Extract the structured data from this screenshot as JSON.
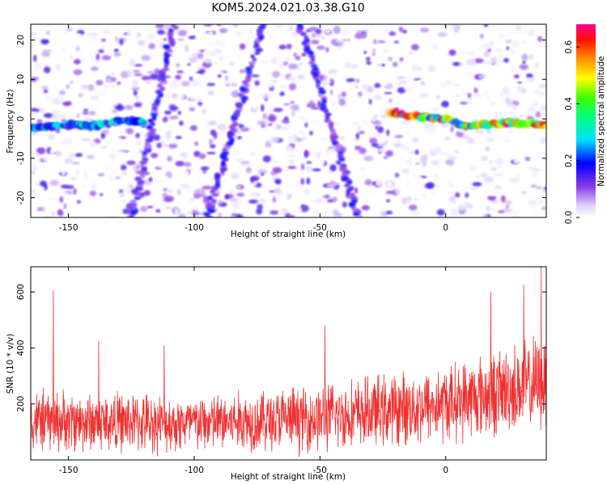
{
  "chart_data": [
    {
      "type": "heatmap",
      "title": "KOM5.2024.021.03.38.G10",
      "xlabel": "Height of straight line (km)",
      "ylabel": "Frequency (Hz)",
      "xlim": [
        -165,
        40
      ],
      "ylim": [
        -25,
        24
      ],
      "xticks": [
        -150,
        -100,
        -50,
        0
      ],
      "yticks": [
        -20,
        -10,
        0,
        10,
        20
      ],
      "colorbar": {
        "label": "Normalized spectral amplitude",
        "range": [
          0.0,
          0.68
        ],
        "ticks": [
          0.0,
          0.2,
          0.4,
          0.6
        ],
        "tick_labels": [
          "0.0",
          "0.2",
          "0.4",
          "0.6"
        ],
        "colormap": [
          "#ffffff",
          "#d8c8f8",
          "#7020e0",
          "#0000ff",
          "#00ffff",
          "#00ff00",
          "#ffff00",
          "#ff8000",
          "#ff0000",
          "#ff00ff"
        ]
      },
      "signal_track": {
        "description_points": [
          {
            "x": -165,
            "y": -2.5
          },
          {
            "x": -150,
            "y": -1.5
          },
          {
            "x": -140,
            "y": -1.8
          },
          {
            "x": -130,
            "y": -0.5
          },
          {
            "x": -120,
            "y": -1.0
          },
          {
            "x": -22,
            "y": 1.5
          },
          {
            "x": -10,
            "y": 0.5
          },
          {
            "x": 0,
            "y": 0.0
          },
          {
            "x": 8,
            "y": -2.0
          },
          {
            "x": 15,
            "y": -1.5
          },
          {
            "x": 25,
            "y": -1.0
          },
          {
            "x": 40,
            "y": -1.5
          }
        ],
        "peak_amplitude": 0.68
      },
      "diagonal_streaks": [
        {
          "x_start": -58,
          "y_start": 24,
          "x_end": -35,
          "y_end": -25
        },
        {
          "x_start": -95,
          "y_start": -25,
          "x_end": -72,
          "y_end": 24
        },
        {
          "x_start": -125,
          "y_start": -25,
          "x_end": -108,
          "y_end": 24
        }
      ],
      "grid": false
    },
    {
      "type": "line",
      "title": "",
      "xlabel": "Height of straight line (km)",
      "ylabel": "SNR (10 * v/v)",
      "xlim": [
        -165,
        40
      ],
      "ylim": [
        0,
        690
      ],
      "xticks": [
        -150,
        -100,
        -50,
        0
      ],
      "yticks": [
        200,
        400,
        600
      ],
      "color": "#f03030",
      "series_profile": [
        {
          "x": -165,
          "baseline": 140,
          "spread": 130
        },
        {
          "x": -100,
          "baseline": 130,
          "spread": 120
        },
        {
          "x": -50,
          "baseline": 150,
          "spread": 140
        },
        {
          "x": 0,
          "baseline": 200,
          "spread": 160
        },
        {
          "x": 40,
          "baseline": 280,
          "spread": 200
        }
      ],
      "notable_peaks": [
        {
          "x": -156,
          "y": 605
        },
        {
          "x": -138,
          "y": 425
        },
        {
          "x": -112,
          "y": 410
        },
        {
          "x": -48,
          "y": 480
        },
        {
          "x": 18,
          "y": 600
        },
        {
          "x": 31,
          "y": 625
        },
        {
          "x": 38,
          "y": 690
        }
      ],
      "grid": false
    }
  ]
}
